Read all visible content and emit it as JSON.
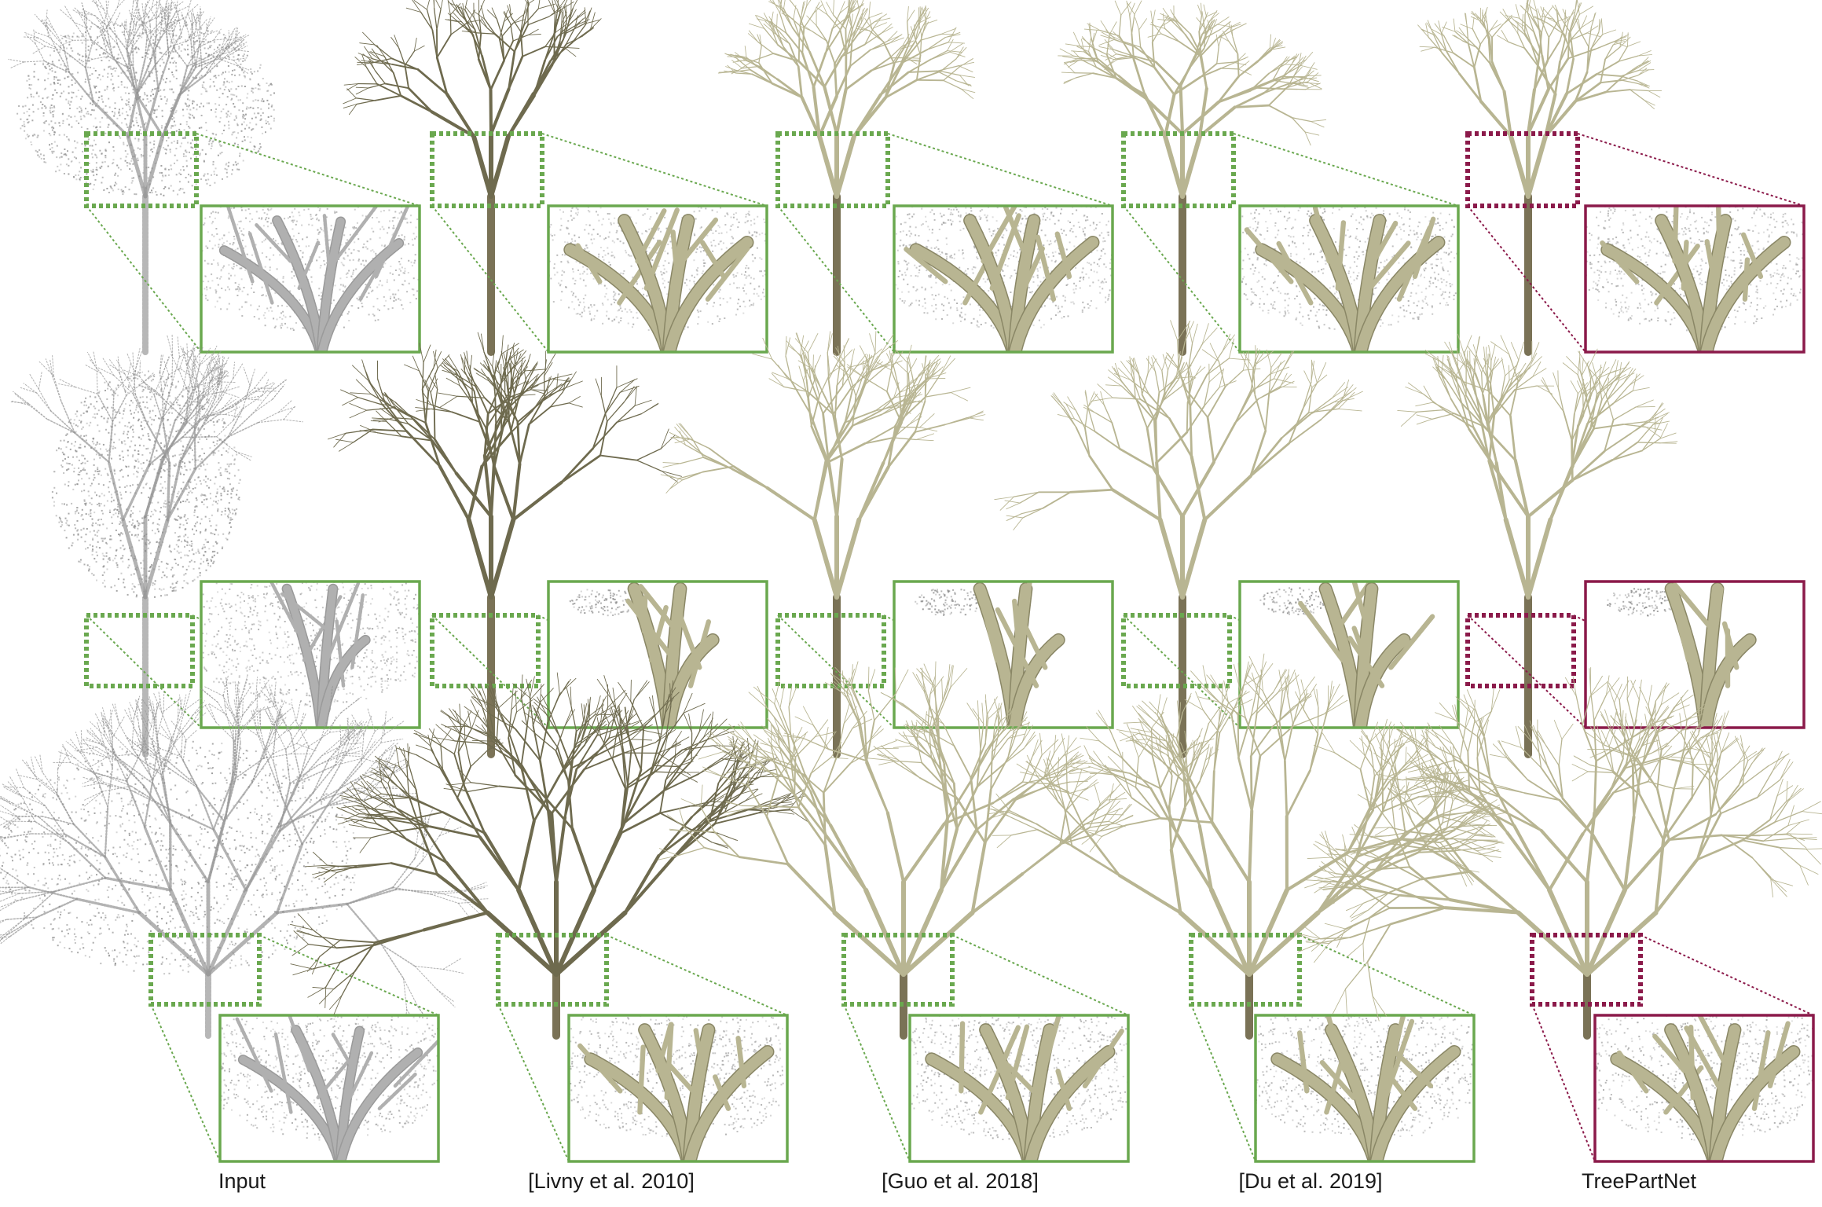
{
  "figure": {
    "columns": [
      {
        "id": "input",
        "label": "Input",
        "kind": "points"
      },
      {
        "id": "livny",
        "label": "[Livny et al. 2010]",
        "kind": "model"
      },
      {
        "id": "guo",
        "label": "[Guo et al. 2018]",
        "kind": "model"
      },
      {
        "id": "du",
        "label": "[Du et al. 2019]",
        "kind": "model"
      },
      {
        "id": "treepartnet",
        "label": "TreePartNet",
        "kind": "ours"
      }
    ],
    "rows": [
      {
        "id": "row-1",
        "tree": "round-crown"
      },
      {
        "id": "row-2",
        "tree": "tall-narrow"
      },
      {
        "id": "row-3",
        "tree": "wide-spreading"
      }
    ],
    "colors": {
      "baseline_frame": "#6aa84f",
      "ours_frame": "#8b1a4a",
      "point_cloud": "#9a9a9a",
      "branch": "#b8b592",
      "branch_dark": "#6e6a4e",
      "trunk": "#7a7256"
    }
  }
}
